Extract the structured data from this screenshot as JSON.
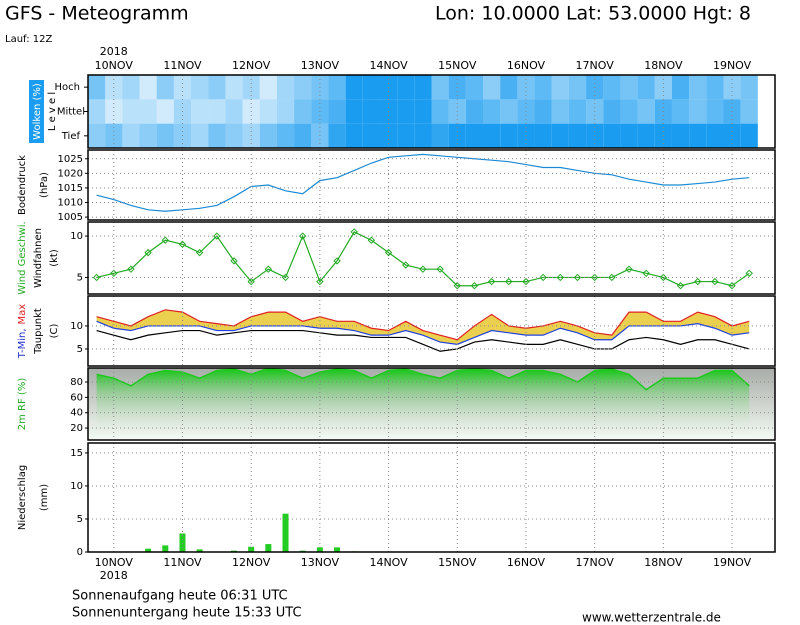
{
  "header": {
    "title": "GFS - Meteogramm",
    "location": "Lon: 10.0000 Lat: 53.0000 Hgt: 8",
    "run": "Lauf: 12Z"
  },
  "time_axis": {
    "year": "2018",
    "xlim": [
      -9,
      231
    ],
    "xticks": [
      {
        "value": 0,
        "label": "10NOV"
      },
      {
        "value": 24,
        "label": "11NOV"
      },
      {
        "value": 48,
        "label": "12NOV"
      },
      {
        "value": 72,
        "label": "13NOV"
      },
      {
        "value": 96,
        "label": "14NOV"
      },
      {
        "value": 120,
        "label": "15NOV"
      },
      {
        "value": 144,
        "label": "16NOV"
      },
      {
        "value": 168,
        "label": "17NOV"
      },
      {
        "value": 192,
        "label": "18NOV"
      },
      {
        "value": 216,
        "label": "19NOV"
      }
    ]
  },
  "chart_data": [
    {
      "type": "cloud",
      "axis_title": "Wolken (%)",
      "level_label": "L e v e l",
      "x": [
        -6,
        0,
        6,
        12,
        18,
        24,
        30,
        36,
        42,
        48,
        54,
        60,
        66,
        72,
        78,
        84,
        90,
        96,
        102,
        108,
        114,
        120,
        126,
        132,
        138,
        144,
        150,
        156,
        162,
        168,
        174,
        180,
        186,
        192,
        198,
        204,
        210,
        216,
        222
      ],
      "color": "#1a9cf0",
      "series": [
        {
          "name": "Hoch",
          "values": [
            60,
            30,
            40,
            20,
            50,
            30,
            40,
            50,
            30,
            40,
            20,
            40,
            50,
            60,
            70,
            100,
            100,
            100,
            100,
            100,
            60,
            80,
            70,
            50,
            80,
            60,
            70,
            50,
            60,
            80,
            70,
            60,
            70,
            50,
            80,
            60,
            70,
            50,
            60
          ]
        },
        {
          "name": "Mittel",
          "values": [
            40,
            20,
            30,
            30,
            20,
            40,
            30,
            30,
            40,
            20,
            30,
            40,
            60,
            70,
            80,
            100,
            100,
            100,
            100,
            100,
            70,
            60,
            80,
            70,
            60,
            70,
            80,
            60,
            70,
            60,
            80,
            70,
            60,
            80,
            70,
            60,
            70,
            80,
            60
          ]
        },
        {
          "name": "Tief",
          "values": [
            50,
            60,
            40,
            50,
            60,
            50,
            40,
            60,
            50,
            40,
            60,
            70,
            80,
            60,
            90,
            100,
            100,
            100,
            100,
            100,
            90,
            100,
            100,
            100,
            100,
            100,
            100,
            100,
            100,
            100,
            100,
            100,
            100,
            100,
            100,
            100,
            100,
            100,
            100
          ]
        }
      ]
    },
    {
      "type": "line",
      "labels": [
        [
          {
            "text": "Bodendruck",
            "color": "#000000"
          }
        ],
        [
          {
            "text": "(hPa)",
            "color": "#000000"
          }
        ]
      ],
      "x": [
        -6,
        0,
        6,
        12,
        18,
        24,
        30,
        36,
        42,
        48,
        54,
        60,
        66,
        72,
        78,
        84,
        90,
        96,
        102,
        108,
        114,
        120,
        126,
        132,
        138,
        144,
        150,
        156,
        162,
        168,
        174,
        180,
        186,
        192,
        198,
        204,
        210,
        216,
        222
      ],
      "ylim": [
        1004,
        1028
      ],
      "yticks": [
        1005,
        1010,
        1015,
        1020,
        1025
      ],
      "series": [
        {
          "color": "#1a8ad4",
          "values": [
            1012.5,
            1011,
            1009,
            1007.5,
            1007,
            1007.5,
            1008,
            1009,
            1012,
            1015.5,
            1016,
            1014,
            1013,
            1017.5,
            1018.5,
            1021,
            1023.5,
            1025.5,
            1026,
            1026.5,
            1026,
            1025.5,
            1025,
            1024.5,
            1024,
            1023,
            1022,
            1022,
            1021,
            1020,
            1019.5,
            1018,
            1017,
            1016,
            1016,
            1016.5,
            1017,
            1018,
            1018.5
          ]
        }
      ]
    },
    {
      "type": "line",
      "labels": [
        [
          {
            "text": "Wind Geschwi.",
            "color": "#22aa22"
          }
        ],
        [
          {
            "text": "Windfahnen",
            "color": "#000000"
          }
        ],
        [
          {
            "text": "(kt)",
            "color": "#000000"
          }
        ]
      ],
      "x": [
        -6,
        0,
        6,
        12,
        18,
        24,
        30,
        36,
        42,
        48,
        54,
        60,
        66,
        72,
        78,
        84,
        90,
        96,
        102,
        108,
        114,
        120,
        126,
        132,
        138,
        144,
        150,
        156,
        162,
        168,
        174,
        180,
        186,
        192,
        198,
        204,
        210,
        216,
        222
      ],
      "ylim": [
        3,
        11.7
      ],
      "yticks": [
        5,
        10
      ],
      "series": [
        {
          "color": "#22aa22",
          "marker": "diamond",
          "values": [
            5,
            5.5,
            6,
            8,
            9.5,
            9,
            8,
            10,
            7,
            4.5,
            6,
            5,
            10,
            4.5,
            7,
            10.5,
            9.5,
            8,
            6.5,
            6,
            6,
            4,
            4,
            4.5,
            4.5,
            4.5,
            5,
            5,
            5,
            5,
            5,
            6,
            5.5,
            5,
            4,
            4.5,
            4.5,
            4,
            5.5
          ]
        }
      ]
    },
    {
      "type": "line",
      "labels": [
        [
          {
            "text": "T-Min,",
            "color": "#2030d0"
          },
          {
            "text": "Max",
            "color": "#e02020"
          }
        ],
        [
          {
            "text": "Taupunkt",
            "color": "#000000"
          }
        ],
        [
          {
            "text": "(C)",
            "color": "#000000"
          }
        ]
      ],
      "x": [
        -6,
        0,
        6,
        12,
        18,
        24,
        30,
        36,
        42,
        48,
        54,
        60,
        66,
        72,
        78,
        84,
        90,
        96,
        102,
        108,
        114,
        120,
        126,
        132,
        138,
        144,
        150,
        156,
        162,
        168,
        174,
        180,
        186,
        192,
        198,
        204,
        210,
        216,
        222
      ],
      "ylim": [
        1.3,
        16.5
      ],
      "yticks": [
        5,
        10
      ],
      "range_fill": "#e8c830",
      "series": [
        {
          "color": "#e02020",
          "values": [
            12,
            11,
            10,
            12,
            13.5,
            13,
            11,
            10.5,
            10,
            12,
            13,
            13,
            11,
            12,
            11,
            11,
            9.5,
            9,
            11,
            9,
            8,
            7,
            10,
            12.5,
            10,
            9.5,
            10,
            11,
            10,
            8.5,
            8,
            13,
            13,
            11,
            11,
            13,
            12,
            10,
            11
          ]
        },
        {
          "color": "#2040e0",
          "values": [
            11,
            9.5,
            9,
            10,
            10,
            10,
            10,
            9,
            9,
            10,
            10,
            10,
            10,
            9.5,
            9.5,
            9,
            8,
            8,
            9,
            8,
            6.5,
            6,
            7.5,
            9,
            8.5,
            8,
            8,
            9.5,
            8.5,
            7,
            7,
            10,
            10,
            10,
            10,
            10.5,
            9.5,
            8,
            8.5
          ]
        },
        {
          "color": "#000000",
          "values": [
            9,
            8,
            7,
            8,
            8.5,
            9,
            9,
            8,
            8.5,
            9,
            9,
            9,
            9,
            8.5,
            8,
            8,
            7.5,
            7.5,
            7.5,
            6,
            4.5,
            5,
            6.5,
            7,
            6.5,
            6,
            6,
            7,
            6,
            5,
            5,
            7,
            7.5,
            7,
            6,
            7,
            7,
            6,
            5
          ]
        }
      ]
    },
    {
      "type": "area",
      "labels": [
        [
          {
            "text": "2m RF (%)",
            "color": "#22aa22"
          }
        ]
      ],
      "x": [
        -6,
        0,
        6,
        12,
        18,
        24,
        30,
        36,
        42,
        48,
        54,
        60,
        66,
        72,
        78,
        84,
        90,
        96,
        102,
        108,
        114,
        120,
        126,
        132,
        138,
        144,
        150,
        156,
        162,
        168,
        174,
        180,
        186,
        192,
        198,
        204,
        210,
        216,
        222
      ],
      "ylim": [
        4.4,
        98.3
      ],
      "yticks": [
        20,
        40,
        60,
        80
      ],
      "series": [
        {
          "color": "#1ec81e",
          "values": [
            90,
            85,
            75,
            90,
            95,
            93,
            85,
            95,
            97,
            90,
            98,
            95,
            85,
            93,
            97,
            95,
            85,
            95,
            97,
            90,
            85,
            95,
            97,
            95,
            85,
            95,
            95,
            90,
            80,
            95,
            97,
            90,
            70,
            85,
            85,
            85,
            95,
            95,
            75
          ]
        }
      ]
    },
    {
      "type": "bar",
      "labels": [
        [
          {
            "text": "Niederschlag",
            "color": "#000000"
          }
        ],
        [
          {
            "text": "(mm)",
            "color": "#000000"
          }
        ]
      ],
      "x": [
        -6,
        0,
        6,
        12,
        18,
        24,
        30,
        36,
        42,
        48,
        54,
        60,
        66,
        72,
        78,
        84,
        90,
        96,
        102,
        108,
        114,
        120,
        126,
        132,
        138,
        144,
        150,
        156,
        162,
        168,
        174,
        180,
        186,
        192,
        198,
        204,
        210,
        216,
        222
      ],
      "ylim": [
        0,
        16.5
      ],
      "yticks": [
        0,
        5,
        10,
        15
      ],
      "series": [
        {
          "color": "#22cc22",
          "values": [
            0,
            0,
            0,
            0.5,
            1,
            2.8,
            0.4,
            0,
            0.2,
            0.8,
            1.2,
            5.8,
            0.2,
            0.7,
            0.7,
            0.1,
            0,
            0,
            0,
            0,
            0,
            0,
            0,
            0,
            0,
            0,
            0,
            0,
            0,
            0,
            0,
            0,
            0,
            0,
            0,
            0,
            0,
            0,
            0
          ]
        }
      ]
    }
  ],
  "footer": {
    "sunrise": "Sonnenaufgang heute 06:31 UTC",
    "sunset": "Sonnenuntergang heute 15:33 UTC",
    "source": "www.wetterzentrale.de"
  }
}
